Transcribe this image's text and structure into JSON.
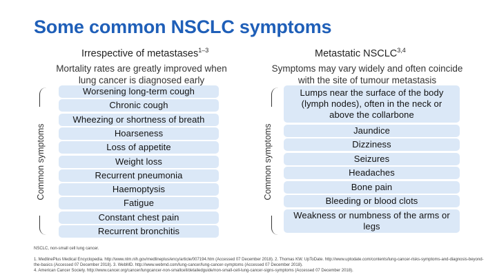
{
  "title": "Some common NSCLC symptoms",
  "left": {
    "heading": "Irrespective of metastases",
    "heading_sup": "1–3",
    "subtitle_line1": "Mortality rates are greatly improved when",
    "subtitle_line2": "lung cancer is diagnosed early",
    "axis_label": "Common symptoms",
    "items": [
      "Worsening long-term cough",
      "Chronic cough",
      "Wheezing or shortness of breath",
      "Hoarseness",
      "Loss of appetite",
      "Weight loss",
      "Recurrent pneumonia",
      "Haemoptysis",
      "Fatigue",
      "Constant chest pain",
      "Recurrent bronchitis"
    ]
  },
  "right": {
    "heading": "Metastatic NSCLC",
    "heading_sup": "3,4",
    "subtitle_line1": "Symptoms may vary widely and often coincide",
    "subtitle_line2": "with the site of tumour metastasis",
    "axis_label": "Common symptoms",
    "items": [
      "Lumps near the surface of the body (lymph nodes), often in the neck or above the collarbone",
      "Jaundice",
      "Dizziness",
      "Seizures",
      "Headaches",
      "Bone pain",
      "Bleeding or blood clots",
      "Weakness or numbness of the arms or legs"
    ]
  },
  "footer": {
    "abbrev": "NSCLC, non-small cell lung cancer.",
    "ref1": "1. MedlinePlus Medical Encyclopedia. http://www.nlm.nih.gov/medlineplus/ency/article/007194.htm (Accessed 07 December 2018). 2. Thomas KW. UpToDate. http://www.uptodate.com/contents/lung-cancer-risks-symptoms-and-diagnosis-beyond-the-basics (Accessed 07 December 2018). 3. WebMD. http://www.webmd.com/lung-cancer/lung-cancer-symptoms (Accessed 07 December 2018).",
    "ref2": "4. American Cancer Society. http://www.cancer.org/cancer/lungcancer-non-smallcell/detailedguide/non-small-cell-lung-cancer-signs-symptoms (Accessed 07 December 2018)."
  }
}
